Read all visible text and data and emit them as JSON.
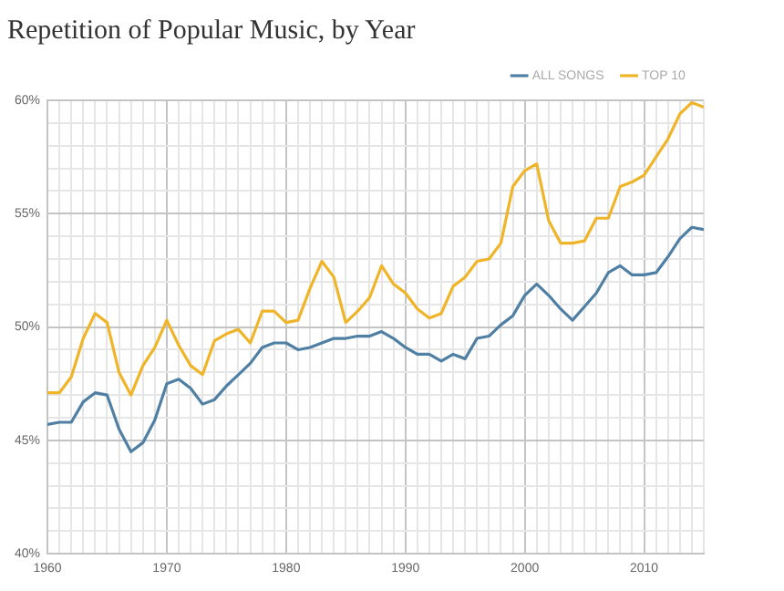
{
  "chart_data": {
    "type": "line",
    "title": "Repetition of Popular Music, by Year",
    "x": [
      1960,
      1961,
      1962,
      1963,
      1964,
      1965,
      1966,
      1967,
      1968,
      1969,
      1970,
      1971,
      1972,
      1973,
      1974,
      1975,
      1976,
      1977,
      1978,
      1979,
      1980,
      1981,
      1982,
      1983,
      1984,
      1985,
      1986,
      1987,
      1988,
      1989,
      1990,
      1991,
      1992,
      1993,
      1994,
      1995,
      1996,
      1997,
      1998,
      1999,
      2000,
      2001,
      2002,
      2003,
      2004,
      2005,
      2006,
      2007,
      2008,
      2009,
      2010,
      2011,
      2012,
      2013,
      2014,
      2015
    ],
    "series": [
      {
        "name": "ALL SONGS",
        "color": "#4f7fa3",
        "values": [
          45.7,
          45.8,
          45.8,
          46.7,
          47.1,
          47.0,
          45.5,
          44.5,
          44.9,
          45.9,
          47.5,
          47.7,
          47.3,
          46.6,
          46.8,
          47.4,
          47.9,
          48.4,
          49.1,
          49.3,
          49.3,
          49.0,
          49.1,
          49.3,
          49.5,
          49.5,
          49.6,
          49.6,
          49.8,
          49.5,
          49.1,
          48.8,
          48.8,
          48.5,
          48.8,
          48.6,
          49.5,
          49.6,
          50.1,
          50.5,
          51.4,
          51.9,
          51.4,
          50.8,
          50.3,
          50.9,
          51.5,
          52.4,
          52.7,
          52.3,
          52.3,
          52.4,
          53.1,
          53.9,
          54.4,
          54.3
        ]
      },
      {
        "name": "TOP 10",
        "color": "#f0b429",
        "values": [
          47.1,
          47.1,
          47.8,
          49.5,
          50.6,
          50.2,
          48.0,
          47.0,
          48.3,
          49.1,
          50.3,
          49.2,
          48.3,
          47.9,
          49.4,
          49.7,
          49.9,
          49.3,
          50.7,
          50.7,
          50.2,
          50.3,
          51.7,
          52.9,
          52.2,
          50.2,
          50.7,
          51.3,
          52.7,
          51.9,
          51.5,
          50.8,
          50.4,
          50.6,
          51.8,
          52.2,
          52.9,
          53.0,
          53.7,
          56.2,
          56.9,
          57.2,
          54.7,
          53.7,
          53.7,
          53.8,
          54.8,
          54.8,
          56.2,
          56.4,
          56.7,
          57.5,
          58.3,
          59.4,
          59.9,
          59.7
        ]
      }
    ],
    "xlim": [
      1960,
      2015
    ],
    "xticks": [
      1960,
      {
        "value": 1961,
        "label": null
      },
      {
        "value": 1962,
        "label": null
      },
      {
        "value": 1963,
        "label": null
      },
      {
        "value": 1964,
        "label": null
      },
      {
        "value": 1965,
        "label": null
      },
      {
        "value": 1966,
        "label": null
      },
      {
        "value": 1967,
        "label": null
      },
      {
        "value": 1968,
        "label": null
      },
      {
        "value": 1969,
        "label": null
      },
      1970,
      {
        "value": 1971,
        "label": null
      },
      {
        "value": 1972,
        "label": null
      },
      {
        "value": 1973,
        "label": null
      },
      {
        "value": 1974,
        "label": null
      },
      {
        "value": 1975,
        "label": null
      },
      {
        "value": 1976,
        "label": null
      },
      {
        "value": 1977,
        "label": null
      },
      {
        "value": 1978,
        "label": null
      },
      {
        "value": 1979,
        "label": null
      },
      1980,
      {
        "value": 1981,
        "label": null
      },
      {
        "value": 1982,
        "label": null
      },
      {
        "value": 1983,
        "label": null
      },
      {
        "value": 1984,
        "label": null
      },
      {
        "value": 1985,
        "label": null
      },
      {
        "value": 1986,
        "label": null
      },
      {
        "value": 1987,
        "label": null
      },
      {
        "value": 1988,
        "label": null
      },
      {
        "value": 1989,
        "label": null
      },
      1990,
      {
        "value": 1991,
        "label": null
      },
      {
        "value": 1992,
        "label": null
      },
      {
        "value": 1993,
        "label": null
      },
      {
        "value": 1994,
        "label": null
      },
      {
        "value": 1995,
        "label": null
      },
      {
        "value": 1996,
        "label": null
      },
      {
        "value": 1997,
        "label": null
      },
      {
        "value": 1998,
        "label": null
      },
      {
        "value": 1999,
        "label": null
      },
      2000,
      {
        "value": 2001,
        "label": null
      },
      {
        "value": 2002,
        "label": null
      },
      {
        "value": 2003,
        "label": null
      },
      {
        "value": 2004,
        "label": null
      },
      {
        "value": 2005,
        "label": null
      },
      {
        "value": 2006,
        "label": null
      },
      {
        "value": 2007,
        "label": null
      },
      {
        "value": 2008,
        "label": null
      },
      {
        "value": 2009,
        "label": null
      },
      2010,
      {
        "value": 2011,
        "label": null
      },
      {
        "value": 2012,
        "label": null
      },
      {
        "value": 2013,
        "label": null
      },
      {
        "value": 2014,
        "label": null
      },
      {
        "value": 2015,
        "label": null
      }
    ],
    "ylim": [
      40,
      60
    ],
    "yticks": [
      {
        "value": 40,
        "label": "40%"
      },
      {
        "value": 41,
        "label": null
      },
      {
        "value": 42,
        "label": null
      },
      {
        "value": 43,
        "label": null
      },
      {
        "value": 44,
        "label": null
      },
      {
        "value": 45,
        "label": "45%"
      },
      {
        "value": 46,
        "label": null
      },
      {
        "value": 47,
        "label": null
      },
      {
        "value": 48,
        "label": null
      },
      {
        "value": 49,
        "label": null
      },
      {
        "value": 50,
        "label": "50%"
      },
      {
        "value": 51,
        "label": null
      },
      {
        "value": 52,
        "label": null
      },
      {
        "value": 53,
        "label": null
      },
      {
        "value": 54,
        "label": null
      },
      {
        "value": 55,
        "label": "55%"
      },
      {
        "value": 56,
        "label": null
      },
      {
        "value": 57,
        "label": null
      },
      {
        "value": 58,
        "label": null
      },
      {
        "value": 59,
        "label": null
      },
      {
        "value": 60,
        "label": "60%"
      }
    ],
    "grid": true,
    "legend": "top right",
    "marker": "none",
    "line_style": "solid"
  }
}
